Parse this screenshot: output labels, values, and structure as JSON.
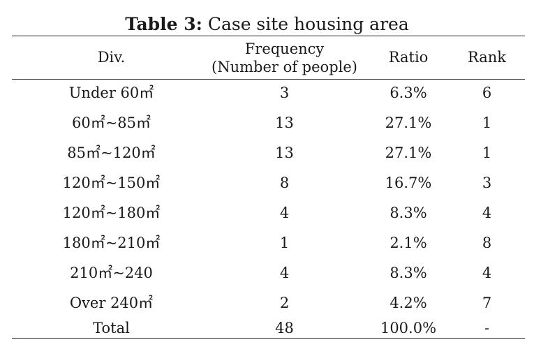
{
  "caption": {
    "label": "Table 3:",
    "text": "Case site housing area"
  },
  "headers": {
    "div": "Div.",
    "frequency_line1": "Frequency",
    "frequency_line2": "(Number of people)",
    "ratio": "Ratio",
    "rank": "Rank"
  },
  "rows": [
    {
      "div": "Under 60㎡",
      "frequency": "3",
      "ratio": "6.3%",
      "rank": "6"
    },
    {
      "div": "60㎡~85㎡",
      "frequency": "13",
      "ratio": "27.1%",
      "rank": "1"
    },
    {
      "div": "85㎡~120㎡",
      "frequency": "13",
      "ratio": "27.1%",
      "rank": "1"
    },
    {
      "div": "120㎡~150㎡",
      "frequency": "8",
      "ratio": "16.7%",
      "rank": "3"
    },
    {
      "div": "120㎡~180㎡",
      "frequency": "4",
      "ratio": "8.3%",
      "rank": "4"
    },
    {
      "div": "180㎡~210㎡",
      "frequency": "1",
      "ratio": "2.1%",
      "rank": "8"
    },
    {
      "div": "210㎡~240",
      "frequency": "4",
      "ratio": "8.3%",
      "rank": "4"
    },
    {
      "div": "Over 240㎡",
      "frequency": "2",
      "ratio": "4.2%",
      "rank": "7"
    },
    {
      "div": "Total",
      "frequency": "48",
      "ratio": "100.0%",
      "rank": "-"
    }
  ]
}
